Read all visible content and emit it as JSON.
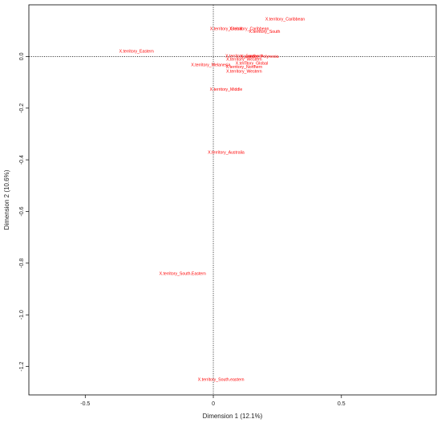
{
  "chart_data": {
    "type": "scatter",
    "title": "",
    "xlabel": "Dimension 1 (12.1%)",
    "ylabel": "Dimension 2 (10.6%)",
    "xlim": [
      -0.72,
      0.87
    ],
    "ylim": [
      -1.31,
      0.2
    ],
    "x_ticks": [
      -0.5,
      0.0,
      0.5
    ],
    "x_tick_labels": [
      "-0.5",
      "0",
      "0.5"
    ],
    "y_ticks": [
      0.0,
      -0.2,
      -0.4,
      -0.6,
      -0.8,
      -1.0,
      -1.2
    ],
    "y_tick_labels": [
      "0.0",
      "-0.2",
      "-0.4",
      "-0.6",
      "-0.8",
      "-1.0",
      "-1.2"
    ],
    "grid": false,
    "reference_lines": {
      "x": 0,
      "y": 0,
      "style": "dotted"
    },
    "label_color": "#ff0000",
    "points": [
      {
        "label": "X.territory_Caribbean",
        "x": 0.28,
        "y": 0.146
      },
      {
        "label": "X.territory_Global",
        "x": 0.05,
        "y": 0.109
      },
      {
        "label": "X.territory_Caribbean",
        "x": 0.14,
        "y": 0.108
      },
      {
        "label": "X.territory_South",
        "x": 0.2,
        "y": 0.097
      },
      {
        "label": "X.territory_Eastern",
        "x": -0.3,
        "y": 0.021
      },
      {
        "label": "X.territory_Southern",
        "x": 0.12,
        "y": 0.002
      },
      {
        "label": "X.territory_Polynesia",
        "x": 0.18,
        "y": 0.001
      },
      {
        "label": "X.territory_Western",
        "x": 0.12,
        "y": -0.009
      },
      {
        "label": "X.territory_Global",
        "x": 0.15,
        "y": -0.025
      },
      {
        "label": "X.territory_Melanesia",
        "x": -0.01,
        "y": -0.031
      },
      {
        "label": "X.territory_Northern",
        "x": 0.12,
        "y": -0.04
      },
      {
        "label": "X.territory_Western",
        "x": 0.12,
        "y": -0.056
      },
      {
        "label": "X.territory_Middle",
        "x": 0.05,
        "y": -0.126
      },
      {
        "label": "X.territory_Australia",
        "x": 0.05,
        "y": -0.37
      },
      {
        "label": "X.territory_South.Eastern",
        "x": -0.12,
        "y": -0.84
      },
      {
        "label": "X.territory_South.eastern",
        "x": 0.03,
        "y": -1.25
      }
    ]
  }
}
